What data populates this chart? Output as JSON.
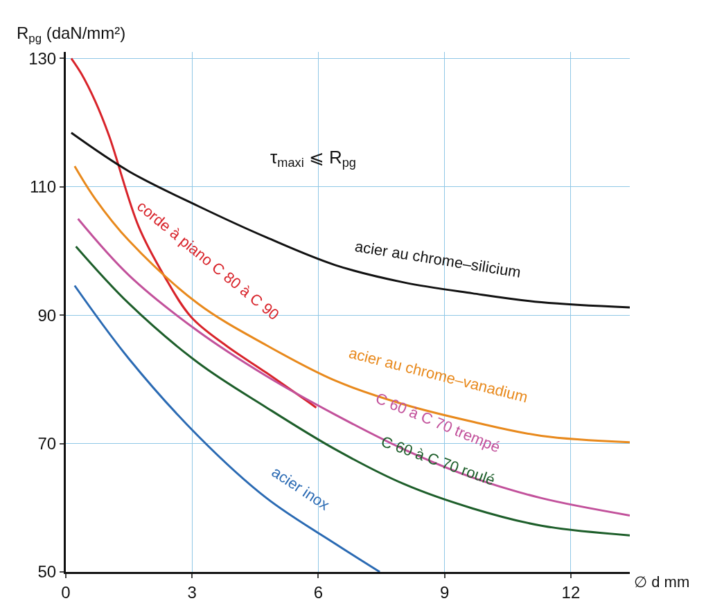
{
  "chart_data": {
    "type": "line",
    "ylabel": "R$_{pg}$ (daN/mm²)",
    "xlabel": "∅ d mm",
    "annotations": [
      "τ$_{maxi}$ ⩽ R$_{pg}$"
    ],
    "xlim": [
      0,
      13.4
    ],
    "xticks": [
      0,
      3,
      6,
      9,
      12
    ],
    "ylim": [
      50,
      131
    ],
    "yticks": [
      50,
      70,
      90,
      110,
      130
    ],
    "grid": true,
    "legend": false,
    "marker": "none",
    "line_style": "solid",
    "series": [
      {
        "name": "corde à piano C 80 à C 90",
        "color": "#d8232a",
        "x": [
          0.13,
          0.37,
          0.7,
          1.03,
          1.73,
          2.33,
          2.98,
          3.8,
          4.77,
          5.95
        ],
        "values": [
          130,
          127.6,
          123.3,
          117.9,
          103.8,
          96.2,
          89.7,
          85.3,
          81,
          75.6
        ]
      },
      {
        "name": "acier au chrome–silicium",
        "color": "#111111",
        "x": [
          0.13,
          1.5,
          3.14,
          4.77,
          6.4,
          8.03,
          9.66,
          11.3,
          13.4
        ],
        "values": [
          118.4,
          112.4,
          107,
          102.1,
          97.8,
          95.1,
          93.4,
          92,
          91.2
        ]
      },
      {
        "name": "acier au chrome–vanadium",
        "color": "#e8891c",
        "x": [
          0.21,
          0.7,
          1.5,
          3.14,
          4.77,
          6.4,
          8.03,
          9.66,
          11.3,
          13.4
        ],
        "values": [
          113.2,
          108.1,
          101.6,
          91.8,
          85.3,
          79.8,
          76.1,
          73.4,
          71.2,
          70.2
        ]
      },
      {
        "name": "C 60 à C 70 trempé",
        "color": "#c2519b",
        "x": [
          0.29,
          1.5,
          3.14,
          4.77,
          6.4,
          8.03,
          9.66,
          11.3,
          13.4
        ],
        "values": [
          105,
          96.2,
          87.5,
          80.5,
          74.5,
          69.1,
          64.7,
          61.5,
          58.8
        ]
      },
      {
        "name": "C 60 à C 70 roulé",
        "color": "#1d5e2a",
        "x": [
          0.24,
          1.5,
          3.14,
          4.77,
          6.4,
          8.03,
          9.66,
          11.3,
          13.4
        ],
        "values": [
          100.7,
          91.8,
          82.6,
          75.6,
          69.1,
          63.7,
          59.9,
          57.2,
          55.7
        ]
      },
      {
        "name": "acier inox",
        "color": "#2a6ab3",
        "x": [
          0.21,
          1.5,
          3.14,
          4.77,
          6.4,
          7.46
        ],
        "values": [
          94.6,
          83.2,
          71.2,
          61.5,
          54.4,
          50
        ]
      }
    ]
  }
}
